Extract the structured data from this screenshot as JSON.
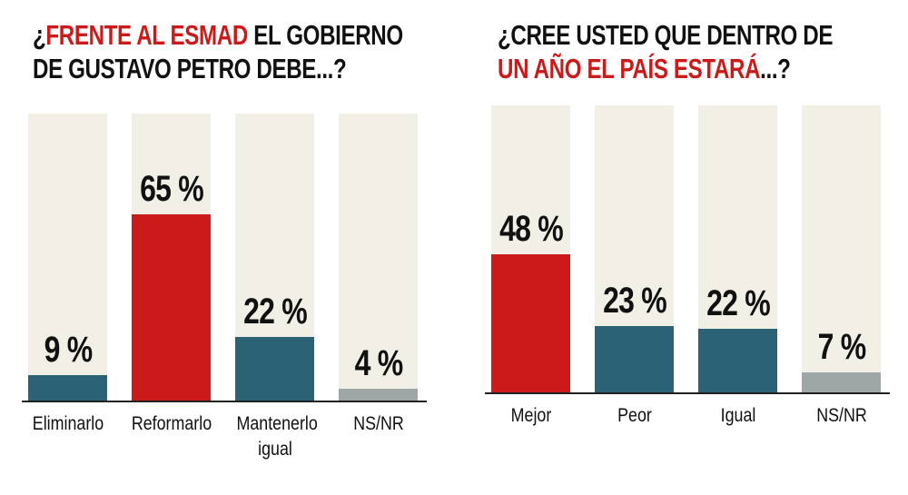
{
  "colors": {
    "highlight": "#cc1a1a",
    "blue": "#2c6276",
    "gray": "#9ea6a6",
    "track": "#f2f0e6"
  },
  "chart_data": [
    {
      "type": "bar",
      "title_parts": [
        "¿",
        "FRENTE AL ESMAD",
        " EL GOBIERNO",
        "DE GUSTAVO PETRO DEBE...?"
      ],
      "categories": [
        "Eliminarlo",
        "Reformarlo",
        "Mantenerlo igual",
        "NS/NR"
      ],
      "values": [
        9,
        65,
        22,
        4
      ],
      "value_labels": [
        "9 %",
        "65 %",
        "22 %",
        "4 %"
      ],
      "bar_colors": [
        "#2c6276",
        "#cc1a1a",
        "#2c6276",
        "#9ea6a6"
      ],
      "unit": "%",
      "ylim": [
        0,
        100
      ],
      "grid": false
    },
    {
      "type": "bar",
      "title_parts": [
        "¿CREE USTED QUE DENTRO DE",
        "UN AÑO EL PAÍS ESTARÁ",
        "...?"
      ],
      "categories": [
        "Mejor",
        "Peor",
        "Igual",
        "NS/NR"
      ],
      "values": [
        48,
        23,
        22,
        7
      ],
      "value_labels": [
        "48 %",
        "23 %",
        "22 %",
        "7 %"
      ],
      "bar_colors": [
        "#cc1a1a",
        "#2c6276",
        "#2c6276",
        "#9ea6a6"
      ],
      "unit": "%",
      "ylim": [
        0,
        100
      ],
      "grid": false
    }
  ]
}
